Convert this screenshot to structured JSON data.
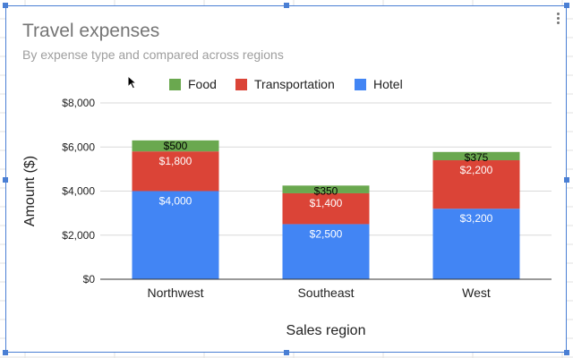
{
  "chart_data": {
    "type": "bar",
    "stacked": true,
    "title": "Travel expenses",
    "subtitle": "By expense type and compared across regions",
    "xlabel": "Sales region",
    "ylabel": "Amount ($)",
    "categories": [
      "Northwest",
      "Southeast",
      "West"
    ],
    "ylim": [
      0,
      8000
    ],
    "yticks": [
      0,
      2000,
      4000,
      6000,
      8000
    ],
    "ytick_labels": [
      "$0",
      "$2,000",
      "$4,000",
      "$6,000",
      "$8,000"
    ],
    "grid": true,
    "legend_position": "top",
    "series": [
      {
        "name": "Hotel",
        "values": [
          4000,
          2500,
          3200
        ],
        "labels": [
          "$4,000",
          "$2,500",
          "$3,200"
        ],
        "color": "#4285f4"
      },
      {
        "name": "Transportation",
        "values": [
          1800,
          1400,
          2200
        ],
        "labels": [
          "$1,800",
          "$1,400",
          "$2,200"
        ],
        "color": "#db4437"
      },
      {
        "name": "Food",
        "values": [
          500,
          350,
          375
        ],
        "labels": [
          "$500",
          "$350",
          "$375"
        ],
        "color": "#6aa84f"
      }
    ],
    "legend_order": [
      "Food",
      "Transportation",
      "Hotel"
    ]
  },
  "icons": {
    "menu": "more-vert-icon",
    "cursor": "mouse-pointer-icon"
  }
}
